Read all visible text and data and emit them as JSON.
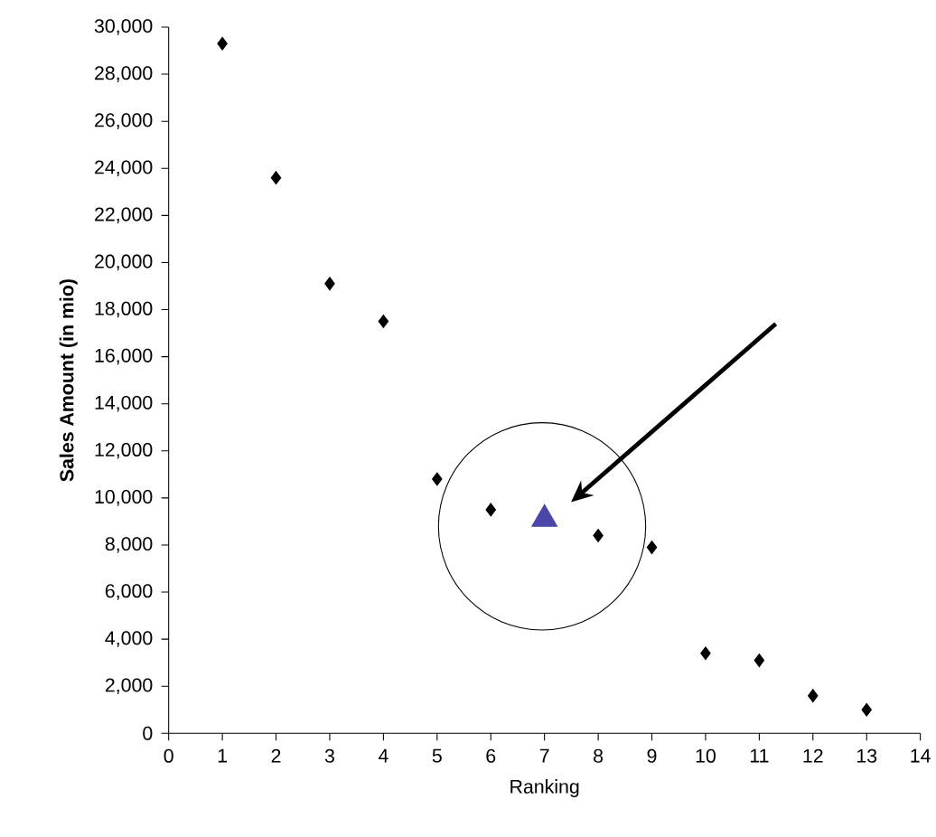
{
  "chart_data": {
    "type": "scatter",
    "xlabel": "Ranking",
    "ylabel": "Sales Amount (in mio)",
    "xlim": [
      0,
      14
    ],
    "xticks": [
      0,
      1,
      2,
      3,
      4,
      5,
      6,
      7,
      8,
      9,
      10,
      11,
      12,
      13,
      14
    ],
    "ylim": [
      0,
      30000
    ],
    "yticks": [
      {
        "value": 0,
        "label": "0"
      },
      {
        "value": 2000,
        "label": "2,000"
      },
      {
        "value": 4000,
        "label": "4,000"
      },
      {
        "value": 6000,
        "label": "6,000"
      },
      {
        "value": 8000,
        "label": "8,000"
      },
      {
        "value": 10000,
        "label": "10,000"
      },
      {
        "value": 12000,
        "label": "12,000"
      },
      {
        "value": 14000,
        "label": "14,000"
      },
      {
        "value": 16000,
        "label": "16,000"
      },
      {
        "value": 18000,
        "label": "18,000"
      },
      {
        "value": 20000,
        "label": "20,000"
      },
      {
        "value": 22000,
        "label": "22,000"
      },
      {
        "value": 24000,
        "label": "24,000"
      },
      {
        "value": 26000,
        "label": "26,000"
      },
      {
        "value": 28000,
        "label": "28,000"
      },
      {
        "value": 30000,
        "label": "30,000"
      }
    ],
    "grid": false,
    "series": [
      {
        "color": "#000000",
        "marker": "diamond",
        "x": [
          1,
          2,
          3,
          4,
          5,
          6,
          8,
          9,
          10,
          11,
          12,
          13
        ],
        "values": [
          29300,
          23600,
          19100,
          17500,
          10800,
          9500,
          8400,
          7900,
          3400,
          3100,
          1600,
          1000
        ]
      },
      {
        "color": "#4b47a8",
        "marker": "triangle",
        "x": [
          7
        ],
        "values": [
          9100
        ]
      }
    ]
  }
}
